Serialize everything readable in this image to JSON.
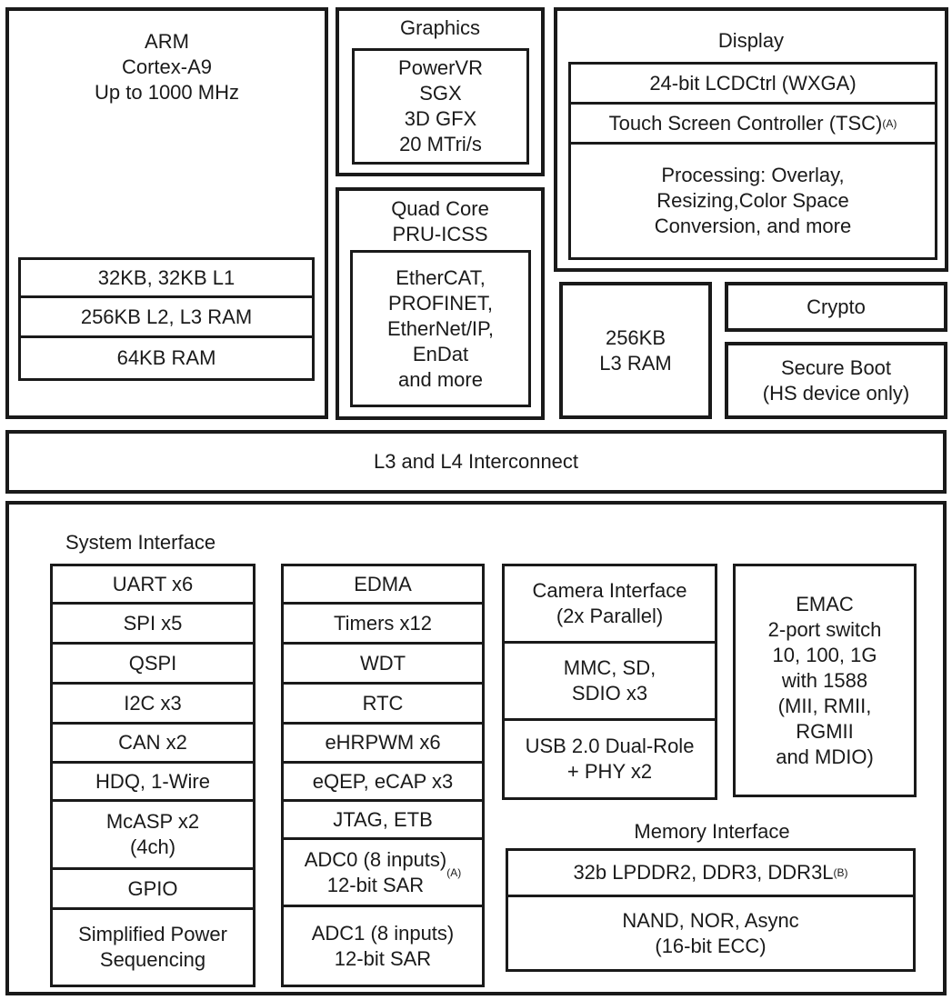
{
  "arm": {
    "title": "ARM\nCortex-A9\nUp to 1000 MHz",
    "mem": [
      "32KB, 32KB L1",
      "256KB L2, L3 RAM",
      "64KB RAM"
    ]
  },
  "graphics": {
    "title": "Graphics",
    "core": "PowerVR\nSGX\n3D GFX\n20 MTri/s"
  },
  "pru": {
    "title": "Quad Core\nPRU-ICSS",
    "protocols": "EtherCAT,\nPROFINET,\nEtherNet/IP,\nEnDat\nand more"
  },
  "display": {
    "title": "Display",
    "lcd": "24-bit LCDCtrl (WXGA)",
    "tsc": "Touch Screen Controller (TSC)",
    "tsc_note": "(A)",
    "processing": "Processing: Overlay,\nResizing,Color Space\nConversion, and more"
  },
  "l3ram": "256KB\nL3 RAM",
  "crypto": "Crypto",
  "secure_boot": "Secure Boot\n(HS device only)",
  "interconnect": "L3 and L4 Interconnect",
  "system_interface": {
    "label": "System Interface",
    "col1": [
      "UART x6",
      "SPI x5",
      "QSPI",
      "I2C x3",
      "CAN x2",
      "HDQ, 1-Wire",
      "McASP x2\n(4ch)",
      "GPIO",
      "Simplified Power\nSequencing"
    ],
    "col2": [
      "EDMA",
      "Timers x12",
      "WDT",
      "RTC",
      "eHRPWM x6",
      "eQEP, eCAP x3",
      "JTAG, ETB",
      "ADC0 (8 inputs)\n12-bit SAR",
      "ADC1 (8 inputs)\n12-bit SAR"
    ],
    "adc0_note": "(A)",
    "col3": [
      "Camera Interface\n(2x Parallel)",
      "MMC, SD,\nSDIO x3",
      "USB 2.0 Dual-Role\n+ PHY x2"
    ],
    "emac": "EMAC\n2-port switch\n10, 100, 1G\nwith 1588\n(MII, RMII,\nRGMII\nand MDIO)"
  },
  "memory_interface": {
    "label": "Memory Interface",
    "ddr": "32b LPDDR2, DDR3, DDR3L",
    "ddr_note": "(B)",
    "nand": "NAND, NOR, Async\n(16-bit ECC)"
  }
}
